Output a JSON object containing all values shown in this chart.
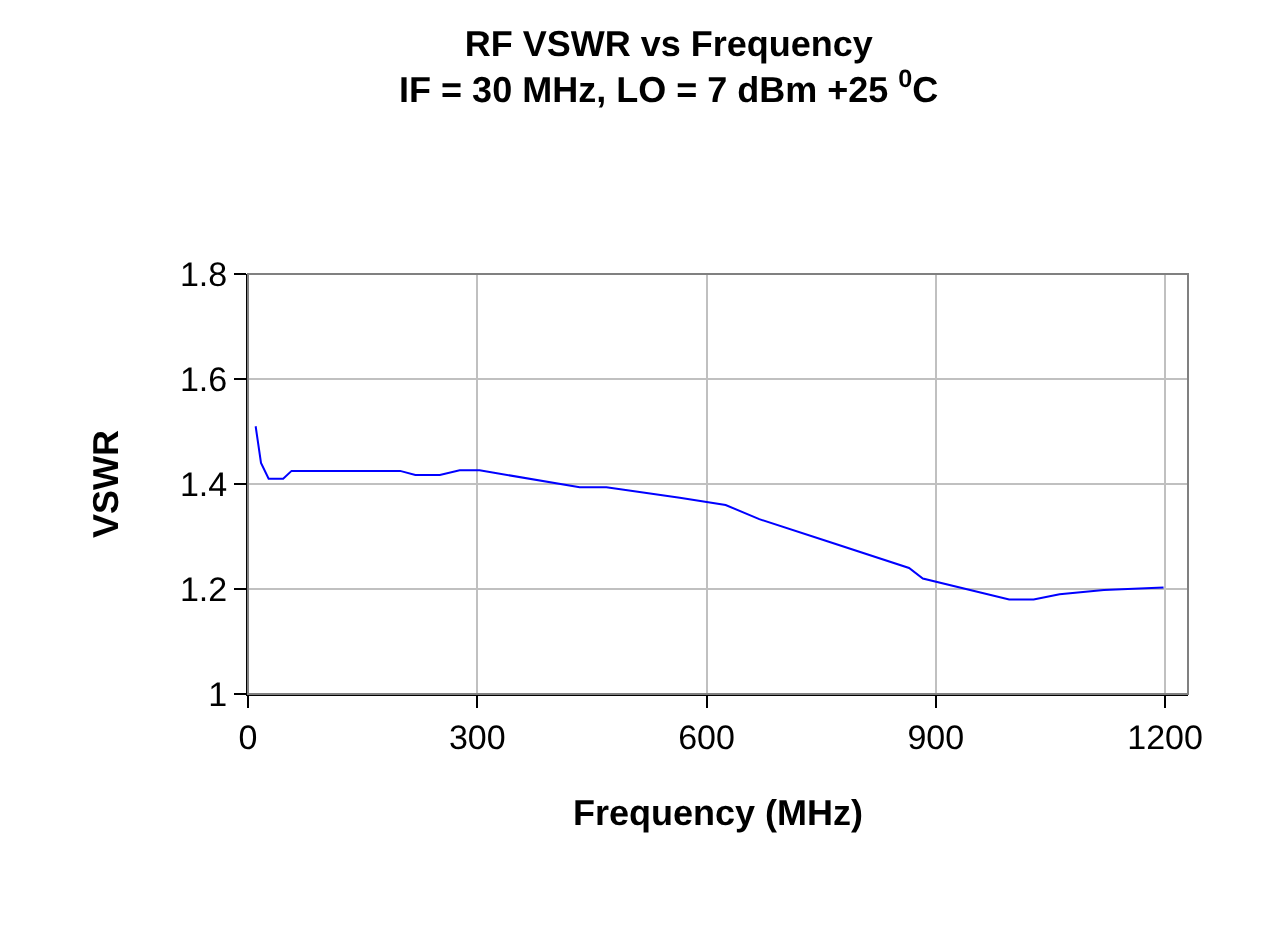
{
  "chart_data": {
    "type": "line",
    "title": "RF VSWR vs Frequency",
    "subtitle": "IF = 30 MHz, LO = 7 dBm +25 $^{0}$C",
    "xlabel": "Frequency (MHz)",
    "ylabel": "VSWR",
    "series": [
      {
        "color": "#0000ff",
        "x": [
          10,
          17,
          27,
          46,
          57,
          120,
          199,
          219,
          251,
          277,
          303,
          434,
          469,
          565,
          625,
          669,
          760,
          865,
          883,
          996,
          1028,
          1062,
          1120,
          1198
        ],
        "values": [
          1.51,
          1.44,
          1.41,
          1.41,
          1.425,
          1.425,
          1.425,
          1.417,
          1.417,
          1.426,
          1.426,
          1.394,
          1.394,
          1.374,
          1.36,
          1.333,
          1.29,
          1.24,
          1.22,
          1.18,
          1.18,
          1.19,
          1.198,
          1.203
        ]
      }
    ],
    "xlim": [
      0,
      1230
    ],
    "xticks": [
      0,
      300,
      600,
      900,
      1200
    ],
    "ylim": [
      1,
      1.8
    ],
    "yticks": [
      {
        "value": 1,
        "label": "1"
      },
      1.2,
      1.4,
      1.6,
      1.8
    ],
    "grid": true,
    "marker": "none",
    "line_style": "solid"
  }
}
